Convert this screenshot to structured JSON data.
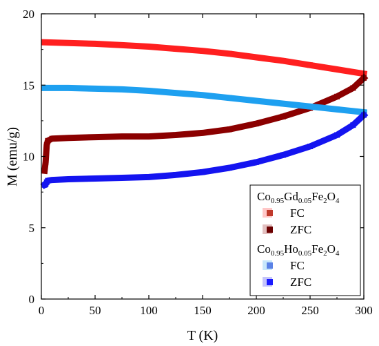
{
  "chart_data": {
    "type": "scatter",
    "title": "",
    "xlabel": "T (K)",
    "ylabel": "M (emu/g)",
    "xlim": [
      0,
      300
    ],
    "ylim": [
      0,
      20
    ],
    "xticks": [
      0,
      50,
      100,
      150,
      200,
      250,
      300
    ],
    "yticks": [
      0,
      5,
      10,
      15,
      20
    ],
    "grid": false,
    "legend_position": "bottom-right",
    "legend_groups": [
      {
        "compound": {
          "base": "Co",
          "sub1": "0.95",
          "mid": "Gd",
          "sub2": "0.05",
          "mid2": "Fe",
          "sub3": "2",
          "end": "O",
          "sub4": "4"
        },
        "entries": [
          "FC",
          "ZFC"
        ]
      },
      {
        "compound": {
          "base": "Co",
          "sub1": "0.95",
          "mid": "Ho",
          "sub2": "0.05",
          "mid2": "Fe",
          "sub3": "2",
          "end": "O",
          "sub4": "4"
        },
        "entries": [
          "FC",
          "ZFC"
        ]
      }
    ],
    "series": [
      {
        "name": "Co0.95Gd0.05Fe2O4 FC",
        "color": "#ff1f1f",
        "legend_marker_color": "#c0392b",
        "x": [
          3,
          25,
          50,
          75,
          100,
          125,
          150,
          175,
          200,
          225,
          250,
          275,
          300
        ],
        "y": [
          18.0,
          17.95,
          17.9,
          17.8,
          17.7,
          17.55,
          17.4,
          17.2,
          16.95,
          16.7,
          16.4,
          16.1,
          15.8
        ]
      },
      {
        "name": "Co0.95Gd0.05Fe2O4 ZFC",
        "color": "#8b0000",
        "legend_marker_color": "#6b0000",
        "x": [
          3,
          4,
          5,
          6,
          10,
          25,
          50,
          75,
          100,
          125,
          150,
          175,
          200,
          225,
          250,
          275,
          290,
          300
        ],
        "y": [
          9.0,
          9.6,
          10.8,
          11.1,
          11.25,
          11.3,
          11.35,
          11.4,
          11.4,
          11.5,
          11.65,
          11.9,
          12.3,
          12.8,
          13.4,
          14.2,
          14.8,
          15.5
        ]
      },
      {
        "name": "Co0.95Ho0.05Fe2O4 FC",
        "color": "#1ea0f0",
        "legend_marker_color": "#5a82e6",
        "x": [
          3,
          25,
          50,
          75,
          100,
          125,
          150,
          175,
          200,
          225,
          250,
          275,
          300
        ],
        "y": [
          14.8,
          14.8,
          14.75,
          14.7,
          14.6,
          14.45,
          14.3,
          14.1,
          13.9,
          13.7,
          13.5,
          13.3,
          13.1
        ]
      },
      {
        "name": "Co0.95Ho0.05Fe2O4 ZFC",
        "color": "#1414f0",
        "legend_marker_color": "#1a1aff",
        "x": [
          3,
          4,
          5,
          6,
          10,
          25,
          50,
          75,
          100,
          125,
          150,
          175,
          200,
          225,
          250,
          275,
          290,
          300
        ],
        "y": [
          8.0,
          8.05,
          8.2,
          8.3,
          8.35,
          8.4,
          8.45,
          8.5,
          8.55,
          8.7,
          8.9,
          9.2,
          9.6,
          10.1,
          10.7,
          11.5,
          12.2,
          12.9
        ]
      }
    ]
  }
}
